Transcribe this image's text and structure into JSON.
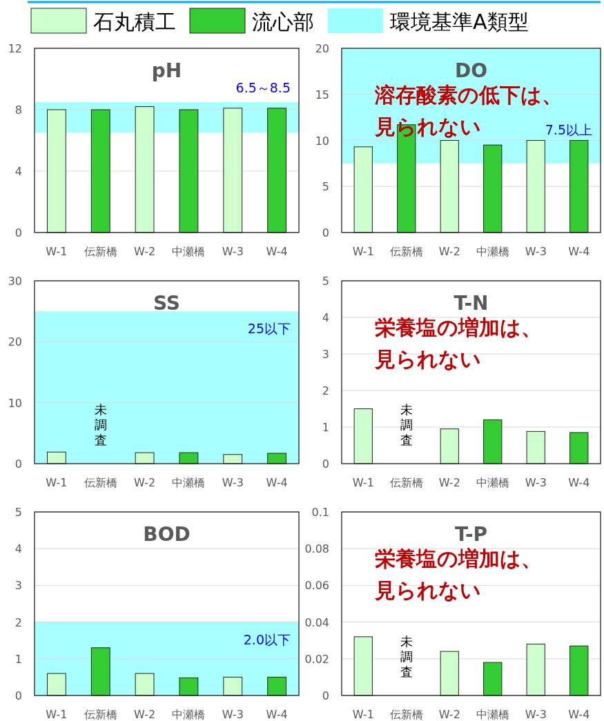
{
  "chart_data": [
    {
      "type": "bar",
      "title": "pH",
      "categories": [
        "W-1",
        "伝新橋",
        "W-2",
        "中瀬橋",
        "W-3",
        "W-4"
      ],
      "series": [
        {
          "name": "石丸積工",
          "color": "#ccffcc",
          "values": [
            8.0,
            null,
            8.2,
            null,
            8.1,
            null
          ]
        },
        {
          "name": "流心部",
          "color": "#33cc33",
          "values": [
            null,
            8.0,
            null,
            8.0,
            null,
            8.1
          ]
        }
      ],
      "ylim": [
        0,
        12
      ],
      "yticks": [
        0,
        4,
        8,
        12
      ],
      "grid": "y",
      "legend": "top",
      "bands": [
        {
          "axis": "y",
          "from": 6.5,
          "to": 8.5,
          "label": "6.5～8.5",
          "color": "#99ffff"
        }
      ],
      "annotations": [
        "環境基準A類型"
      ]
    },
    {
      "type": "bar",
      "title": "DO",
      "categories": [
        "W-1",
        "伝新橋",
        "W-2",
        "中瀬橋",
        "W-3",
        "W-4"
      ],
      "series": [
        {
          "color": "#ccffcc",
          "values": [
            9.3,
            null,
            10.0,
            null,
            10.0,
            null
          ]
        },
        {
          "color": "#33cc33",
          "values": [
            null,
            11.7,
            null,
            9.5,
            null,
            10.0
          ]
        }
      ],
      "ylim": [
        0,
        20
      ],
      "yticks": [
        0,
        5,
        10,
        15,
        20
      ],
      "grid": "y",
      "bands": [
        {
          "axis": "y",
          "from": 7.5,
          "to": 20,
          "label": "7.5以上",
          "color": "#99ffff"
        }
      ],
      "annotations": [
        "溶存酸素の低下は、",
        "見られない"
      ]
    },
    {
      "type": "bar",
      "title": "SS",
      "categories": [
        "W-1",
        "伝新橋",
        "W-2",
        "中瀬橋",
        "W-3",
        "W-4"
      ],
      "series": [
        {
          "color": "#ccffcc",
          "values": [
            1.9,
            null,
            1.8,
            null,
            1.5,
            null
          ]
        },
        {
          "color": "#33cc33",
          "values": [
            null,
            null,
            null,
            1.8,
            null,
            1.7
          ],
          "value_labels": [
            null,
            "未調査",
            null,
            null,
            null,
            null
          ]
        }
      ],
      "ylim": [
        0,
        30
      ],
      "yticks": [
        0,
        10,
        20,
        30
      ],
      "grid": "y",
      "bands": [
        {
          "axis": "y",
          "from": 0,
          "to": 25,
          "label": "25以下",
          "color": "#99ffff"
        }
      ]
    },
    {
      "type": "bar",
      "title": "T-N",
      "categories": [
        "W-1",
        "伝新橋",
        "W-2",
        "中瀬橋",
        "W-3",
        "W-4"
      ],
      "series": [
        {
          "color": "#ccffcc",
          "values": [
            1.5,
            null,
            0.95,
            null,
            0.88,
            null
          ]
        },
        {
          "color": "#33cc33",
          "values": [
            null,
            null,
            null,
            1.2,
            null,
            0.85
          ],
          "value_labels": [
            null,
            "未調査",
            null,
            null,
            null,
            null
          ]
        }
      ],
      "ylim": [
        0,
        5
      ],
      "yticks": [
        0,
        1,
        2,
        3,
        4,
        5
      ],
      "grid": "y",
      "annotations": [
        "栄養塩の増加は、",
        "見られない"
      ]
    },
    {
      "type": "bar",
      "title": "BOD",
      "categories": [
        "W-1",
        "伝新橋",
        "W-2",
        "中瀬橋",
        "W-3",
        "W-4"
      ],
      "series": [
        {
          "color": "#ccffcc",
          "values": [
            0.6,
            null,
            0.6,
            null,
            0.5,
            null
          ]
        },
        {
          "color": "#33cc33",
          "values": [
            null,
            1.3,
            null,
            0.48,
            null,
            0.5
          ]
        }
      ],
      "ylim": [
        0,
        5
      ],
      "yticks": [
        0,
        1,
        2,
        3,
        4,
        5
      ],
      "grid": "y",
      "bands": [
        {
          "axis": "y",
          "from": 0,
          "to": 2,
          "label": "2.0以下",
          "color": "#99ffff"
        }
      ]
    },
    {
      "type": "bar",
      "title": "T-P",
      "categories": [
        "W-1",
        "伝新橋",
        "W-2",
        "中瀬橋",
        "W-3",
        "W-4"
      ],
      "series": [
        {
          "color": "#ccffcc",
          "values": [
            0.032,
            null,
            0.024,
            null,
            0.028,
            null
          ]
        },
        {
          "color": "#33cc33",
          "values": [
            null,
            null,
            null,
            0.018,
            null,
            0.027
          ],
          "value_labels": [
            null,
            "未調査",
            null,
            null,
            null,
            null
          ]
        }
      ],
      "ylim": [
        0,
        0.1
      ],
      "yticks": [
        0,
        0.02,
        0.04,
        0.06,
        0.08,
        0.1
      ],
      "grid": "y",
      "annotations": [
        "栄養塩の増加は、",
        "見られない"
      ]
    }
  ]
}
